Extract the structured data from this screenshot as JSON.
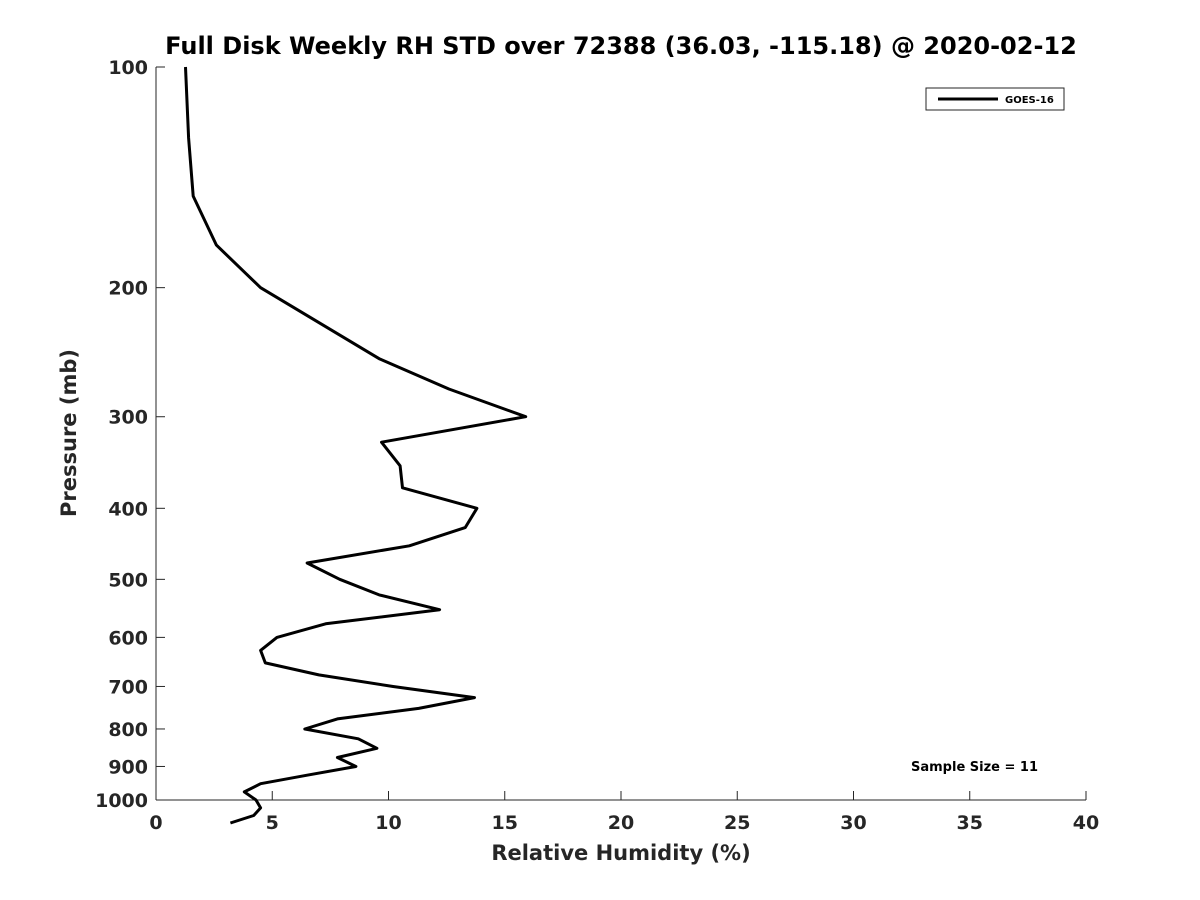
{
  "chart_data": {
    "type": "line",
    "title": "Full Disk Weekly RH STD over 72388 (36.03, -115.18) @ 2020-02-12",
    "xlabel": "Relative Humidity (%)",
    "ylabel": "Pressure (mb)",
    "xlim": [
      0,
      40
    ],
    "ylim": [
      100,
      1000
    ],
    "y_scale": "log",
    "y_reversed": true,
    "grid": false,
    "legend_position": "top-right",
    "x_ticks": [
      0,
      5,
      10,
      15,
      20,
      25,
      30,
      35,
      40
    ],
    "x_tick_labels": [
      "0",
      "5",
      "10",
      "15",
      "20",
      "25",
      "30",
      "35",
      "40"
    ],
    "y_ticks": [
      100,
      200,
      300,
      400,
      500,
      600,
      700,
      800,
      900,
      1000
    ],
    "y_tick_labels": [
      "100",
      "200",
      "300",
      "400",
      "500",
      "600",
      "700",
      "800",
      "900",
      "1000"
    ],
    "series": [
      {
        "name": "GOES-16",
        "color": "#000000",
        "points": [
          {
            "x": 1.27,
            "p": 100
          },
          {
            "x": 1.4,
            "p": 125
          },
          {
            "x": 1.6,
            "p": 150
          },
          {
            "x": 2.6,
            "p": 175
          },
          {
            "x": 4.5,
            "p": 200
          },
          {
            "x": 9.6,
            "p": 250
          },
          {
            "x": 12.6,
            "p": 275
          },
          {
            "x": 15.9,
            "p": 300
          },
          {
            "x": 9.7,
            "p": 325
          },
          {
            "x": 10.5,
            "p": 350
          },
          {
            "x": 10.6,
            "p": 375
          },
          {
            "x": 13.8,
            "p": 400
          },
          {
            "x": 13.3,
            "p": 425
          },
          {
            "x": 10.9,
            "p": 450
          },
          {
            "x": 6.5,
            "p": 475
          },
          {
            "x": 7.9,
            "p": 500
          },
          {
            "x": 9.6,
            "p": 525
          },
          {
            "x": 12.2,
            "p": 550
          },
          {
            "x": 7.3,
            "p": 575
          },
          {
            "x": 5.2,
            "p": 600
          },
          {
            "x": 4.5,
            "p": 625
          },
          {
            "x": 4.7,
            "p": 650
          },
          {
            "x": 7.0,
            "p": 675
          },
          {
            "x": 10.2,
            "p": 700
          },
          {
            "x": 13.7,
            "p": 725
          },
          {
            "x": 11.3,
            "p": 750
          },
          {
            "x": 7.8,
            "p": 775
          },
          {
            "x": 6.4,
            "p": 800
          },
          {
            "x": 8.7,
            "p": 825
          },
          {
            "x": 9.5,
            "p": 850
          },
          {
            "x": 7.8,
            "p": 875
          },
          {
            "x": 8.6,
            "p": 900
          },
          {
            "x": 6.5,
            "p": 925
          },
          {
            "x": 4.5,
            "p": 950
          },
          {
            "x": 3.8,
            "p": 975
          },
          {
            "x": 4.3,
            "p": 1000
          },
          {
            "x": 4.5,
            "p": 1025
          },
          {
            "x": 4.2,
            "p": 1050
          },
          {
            "x": 3.2,
            "p": 1075
          }
        ]
      }
    ],
    "annotation": "Sample Size = 11"
  }
}
